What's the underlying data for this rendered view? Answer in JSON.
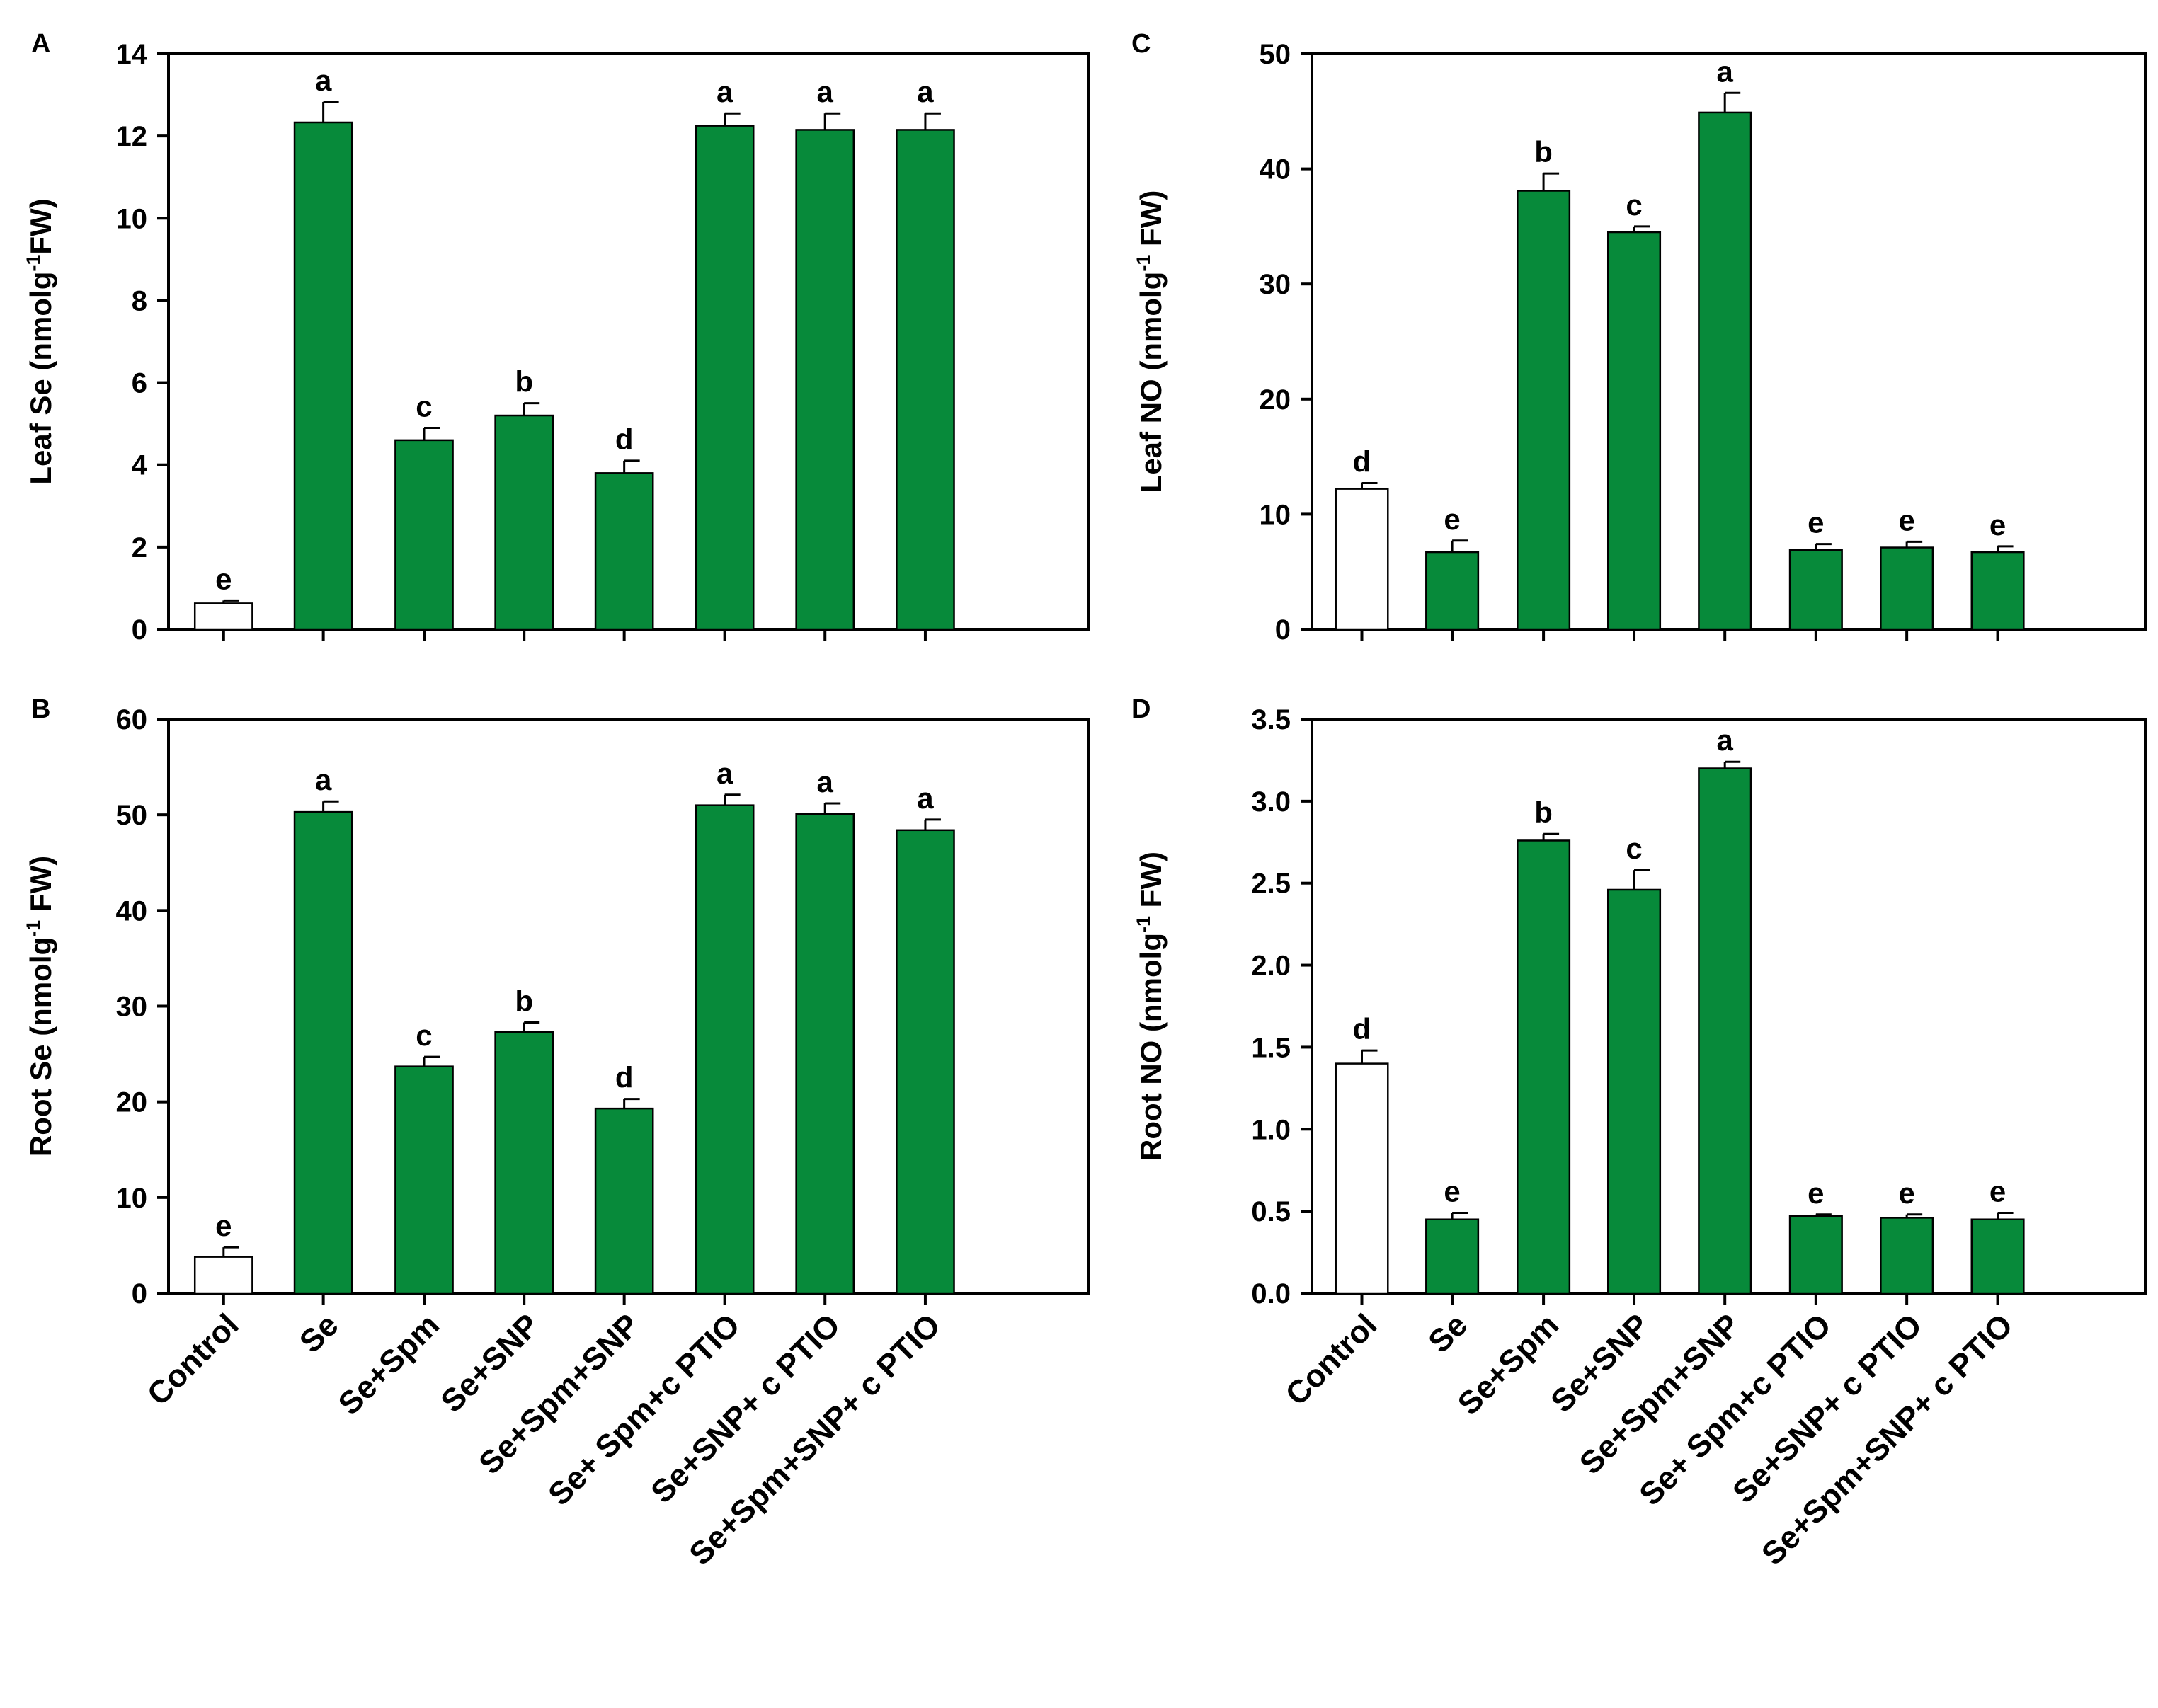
{
  "figure": {
    "colors": {
      "control_fill": "#ffffff",
      "treatment_fill": "#078a3a",
      "stroke": "#000000"
    }
  },
  "chart_data": [
    {
      "id": "A",
      "type": "bar",
      "panel_letter": "A",
      "ylabel": {
        "pre": "Leaf Se (nmolg",
        "sup": "-1",
        "post": "FW)"
      },
      "ylim": [
        0,
        14
      ],
      "yticks": [
        0,
        2,
        4,
        6,
        8,
        10,
        12,
        14
      ],
      "tick_decimals": 0,
      "categories": [
        "Control",
        "Se",
        "Se+Spm",
        "Se+SNP",
        "Se+Spm+SNP",
        "Se+ Spm+c PTIO",
        "Se+SNP+ c PTIO",
        "Se+Spm+SNP+ c PTIO"
      ],
      "values": [
        0.63,
        12.33,
        4.6,
        5.2,
        3.8,
        12.25,
        12.15,
        12.15
      ],
      "errors": [
        0.07,
        0.5,
        0.3,
        0.3,
        0.3,
        0.3,
        0.4,
        0.4
      ],
      "letters": [
        "e",
        "a",
        "c",
        "b",
        "d",
        "a",
        "a",
        "a"
      ],
      "show_xlabels": false
    },
    {
      "id": "B",
      "type": "bar",
      "panel_letter": "B",
      "ylabel": {
        "pre": "Root Se (nmolg",
        "sup": "-1",
        "post": " FW)"
      },
      "ylim": [
        0,
        60
      ],
      "yticks": [
        0,
        10,
        20,
        30,
        40,
        50,
        60
      ],
      "tick_decimals": 0,
      "categories": [
        "Control",
        "Se",
        "Se+Spm",
        "Se+SNP",
        "Se+Spm+SNP",
        "Se+ Spm+c PTIO",
        "Se+SNP+ c PTIO",
        "Se+Spm+SNP+ c PTIO"
      ],
      "values": [
        3.8,
        50.3,
        23.7,
        27.3,
        19.3,
        51.0,
        50.1,
        48.4
      ],
      "errors": [
        1.0,
        1.1,
        1.0,
        1.0,
        1.0,
        1.1,
        1.1,
        1.1
      ],
      "letters": [
        "e",
        "a",
        "c",
        "b",
        "d",
        "a",
        "a",
        "a"
      ],
      "show_xlabels": true
    },
    {
      "id": "C",
      "type": "bar",
      "panel_letter": "C",
      "ylabel": {
        "pre": "Leaf NO (nmolg",
        "sup": "-1",
        "post": " FW)"
      },
      "ylim": [
        0,
        50
      ],
      "yticks": [
        0,
        10,
        20,
        30,
        40,
        50
      ],
      "tick_decimals": 0,
      "categories": [
        "Control",
        "Se",
        "Se+Spm",
        "Se+SNP",
        "Se+Spm+SNP",
        "Se+ Spm+c PTIO",
        "Se+SNP+ c PTIO",
        "Se+Spm+SNP+ c PTIO"
      ],
      "values": [
        12.2,
        6.7,
        38.1,
        34.5,
        44.9,
        6.9,
        7.1,
        6.7
      ],
      "errors": [
        0.5,
        1.0,
        1.5,
        0.5,
        1.7,
        0.5,
        0.5,
        0.5
      ],
      "letters": [
        "d",
        "e",
        "b",
        "c",
        "a",
        "e",
        "e",
        "e"
      ],
      "show_xlabels": false
    },
    {
      "id": "D",
      "type": "bar",
      "panel_letter": "D",
      "ylabel": {
        "pre": "Root NO (nmolg",
        "sup": "-1",
        "post": " FW)"
      },
      "ylim": [
        0,
        3.5
      ],
      "yticks": [
        0,
        0.5,
        1.0,
        1.5,
        2.0,
        2.5,
        3.0,
        3.5
      ],
      "tick_decimals": 1,
      "categories": [
        "Control",
        "Se",
        "Se+Spm",
        "Se+SNP",
        "Se+Spm+SNP",
        "Se+ Spm+c PTIO",
        "Se+SNP+ c PTIO",
        "Se+Spm+SNP+ c PTIO"
      ],
      "values": [
        1.4,
        0.45,
        2.76,
        2.46,
        3.2,
        0.47,
        0.46,
        0.45
      ],
      "errors": [
        0.08,
        0.04,
        0.04,
        0.12,
        0.04,
        0.01,
        0.02,
        0.04
      ],
      "letters": [
        "d",
        "e",
        "b",
        "c",
        "a",
        "e",
        "e",
        "e"
      ],
      "show_xlabels": true
    }
  ]
}
